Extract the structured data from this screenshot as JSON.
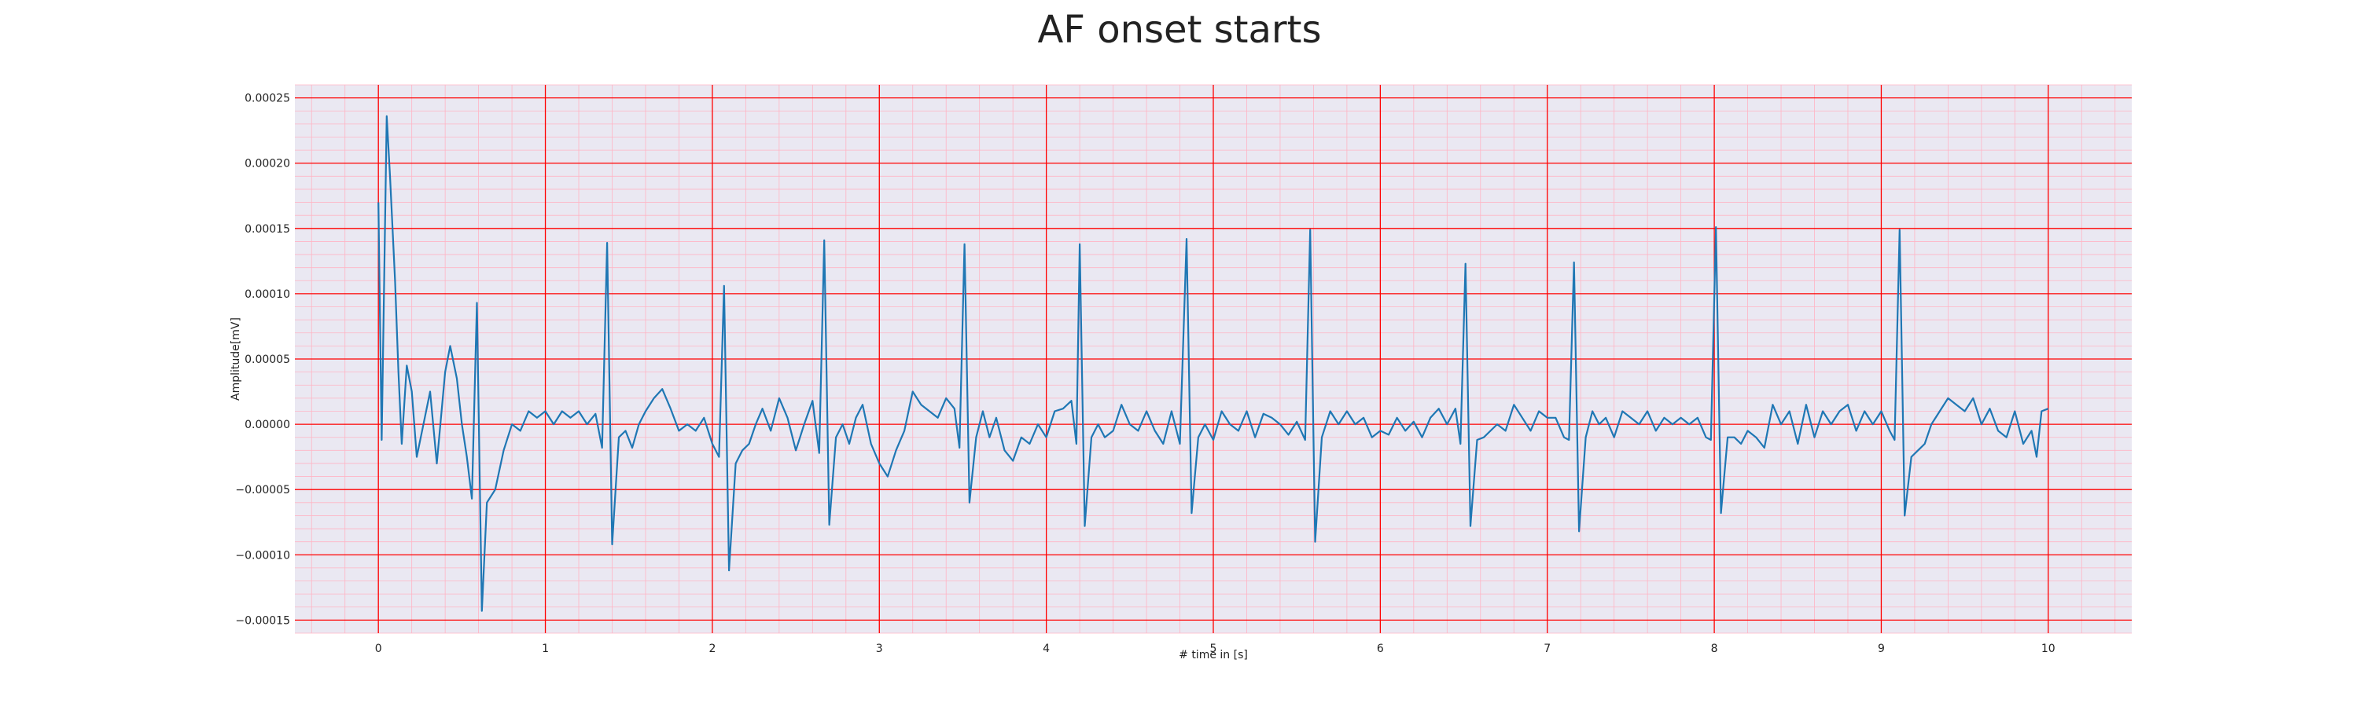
{
  "chart_data": {
    "type": "line",
    "title": "AF onset starts",
    "xlabel": "# time in [s]",
    "ylabel": "Amplitude[mV]",
    "xlim": [
      -0.5,
      10.5
    ],
    "ylim": [
      -0.00016,
      0.00026
    ],
    "x_ticks": [
      0,
      1,
      2,
      3,
      4,
      5,
      6,
      7,
      8,
      9,
      10
    ],
    "x_tick_labels": [
      "0",
      "1",
      "2",
      "3",
      "4",
      "5",
      "6",
      "7",
      "8",
      "9",
      "10"
    ],
    "y_ticks": [
      -0.00015,
      -0.0001,
      -5e-05,
      0,
      5e-05,
      0.0001,
      0.00015,
      0.0002,
      0.00025
    ],
    "y_tick_labels": [
      "−0.00015",
      "−0.00010",
      "−0.00005",
      "0.00000",
      "0.00005",
      "0.00010",
      "0.00015",
      "0.00020",
      "0.00025"
    ],
    "grid": {
      "major": true,
      "minor": true
    },
    "colors": {
      "line": "#1f77b4",
      "plot_background": "#eae8f2",
      "major_grid": "#ff0000",
      "minor_grid": "#ffb4c4"
    },
    "series": [
      {
        "values": [
          [
            0.0,
            0.00017
          ],
          [
            0.02,
            -1.2e-05
          ],
          [
            0.05,
            0.000236
          ],
          [
            0.07,
            0.00019
          ],
          [
            0.1,
            0.00011
          ],
          [
            0.12,
            4e-05
          ],
          [
            0.14,
            -1.5e-05
          ],
          [
            0.17,
            4.5e-05
          ],
          [
            0.2,
            2.5e-05
          ],
          [
            0.23,
            -2.5e-05
          ],
          [
            0.27,
            0.0
          ],
          [
            0.31,
            2.5e-05
          ],
          [
            0.35,
            -3e-05
          ],
          [
            0.4,
            4e-05
          ],
          [
            0.43,
            6e-05
          ],
          [
            0.47,
            3.5e-05
          ],
          [
            0.5,
            0.0
          ],
          [
            0.53,
            -2.5e-05
          ],
          [
            0.56,
            -5.7e-05
          ],
          [
            0.59,
            9.3e-05
          ],
          [
            0.62,
            -0.000143
          ],
          [
            0.65,
            -6e-05
          ],
          [
            0.7,
            -5e-05
          ],
          [
            0.75,
            -2e-05
          ],
          [
            0.8,
            0.0
          ],
          [
            0.85,
            -5e-06
          ],
          [
            0.9,
            1e-05
          ],
          [
            0.95,
            5e-06
          ],
          [
            1.0,
            1e-05
          ],
          [
            1.05,
            0.0
          ],
          [
            1.1,
            1e-05
          ],
          [
            1.15,
            5e-06
          ],
          [
            1.2,
            1e-05
          ],
          [
            1.25,
            0.0
          ],
          [
            1.3,
            8e-06
          ],
          [
            1.34,
            -1.8e-05
          ],
          [
            1.37,
            0.000139
          ],
          [
            1.4,
            -9.2e-05
          ],
          [
            1.44,
            -1e-05
          ],
          [
            1.48,
            -5e-06
          ],
          [
            1.52,
            -1.8e-05
          ],
          [
            1.56,
            0.0
          ],
          [
            1.6,
            1e-05
          ],
          [
            1.65,
            2e-05
          ],
          [
            1.7,
            2.7e-05
          ],
          [
            1.75,
            1.2e-05
          ],
          [
            1.8,
            -5e-06
          ],
          [
            1.85,
            0.0
          ],
          [
            1.9,
            -5e-06
          ],
          [
            1.95,
            5e-06
          ],
          [
            2.0,
            -1.5e-05
          ],
          [
            2.04,
            -2.5e-05
          ],
          [
            2.07,
            0.000106
          ],
          [
            2.1,
            -0.000112
          ],
          [
            2.14,
            -3e-05
          ],
          [
            2.18,
            -2e-05
          ],
          [
            2.22,
            -1.5e-05
          ],
          [
            2.26,
            0.0
          ],
          [
            2.3,
            1.2e-05
          ],
          [
            2.35,
            -5e-06
          ],
          [
            2.4,
            2e-05
          ],
          [
            2.45,
            5e-06
          ],
          [
            2.5,
            -2e-05
          ],
          [
            2.55,
            0.0
          ],
          [
            2.6,
            1.8e-05
          ],
          [
            2.64,
            -2.2e-05
          ],
          [
            2.67,
            0.000141
          ],
          [
            2.7,
            -7.7e-05
          ],
          [
            2.74,
            -1e-05
          ],
          [
            2.78,
            0.0
          ],
          [
            2.82,
            -1.5e-05
          ],
          [
            2.86,
            5e-06
          ],
          [
            2.9,
            1.5e-05
          ],
          [
            2.95,
            -1.5e-05
          ],
          [
            3.0,
            -3e-05
          ],
          [
            3.05,
            -4e-05
          ],
          [
            3.1,
            -2e-05
          ],
          [
            3.15,
            -5e-06
          ],
          [
            3.2,
            2.5e-05
          ],
          [
            3.25,
            1.5e-05
          ],
          [
            3.3,
            1e-05
          ],
          [
            3.35,
            5e-06
          ],
          [
            3.4,
            2e-05
          ],
          [
            3.45,
            1.2e-05
          ],
          [
            3.48,
            -1.8e-05
          ],
          [
            3.51,
            0.000138
          ],
          [
            3.54,
            -6e-05
          ],
          [
            3.58,
            -1e-05
          ],
          [
            3.62,
            1e-05
          ],
          [
            3.66,
            -1e-05
          ],
          [
            3.7,
            5e-06
          ],
          [
            3.75,
            -2e-05
          ],
          [
            3.8,
            -2.8e-05
          ],
          [
            3.85,
            -1e-05
          ],
          [
            3.9,
            -1.5e-05
          ],
          [
            3.95,
            0.0
          ],
          [
            4.0,
            -1e-05
          ],
          [
            4.05,
            1e-05
          ],
          [
            4.1,
            1.2e-05
          ],
          [
            4.15,
            1.8e-05
          ],
          [
            4.18,
            -1.5e-05
          ],
          [
            4.2,
            0.000138
          ],
          [
            4.23,
            -7.8e-05
          ],
          [
            4.27,
            -1e-05
          ],
          [
            4.31,
            0.0
          ],
          [
            4.35,
            -1e-05
          ],
          [
            4.4,
            -5e-06
          ],
          [
            4.45,
            1.5e-05
          ],
          [
            4.5,
            0.0
          ],
          [
            4.55,
            -5e-06
          ],
          [
            4.6,
            1e-05
          ],
          [
            4.65,
            -5e-06
          ],
          [
            4.7,
            -1.5e-05
          ],
          [
            4.75,
            1e-05
          ],
          [
            4.8,
            -1.5e-05
          ],
          [
            4.84,
            0.000142
          ],
          [
            4.87,
            -6.8e-05
          ],
          [
            4.91,
            -1e-05
          ],
          [
            4.95,
            0.0
          ],
          [
            5.0,
            -1.2e-05
          ],
          [
            5.05,
            1e-05
          ],
          [
            5.1,
            0.0
          ],
          [
            5.15,
            -5e-06
          ],
          [
            5.2,
            1e-05
          ],
          [
            5.25,
            -1e-05
          ],
          [
            5.3,
            8e-06
          ],
          [
            5.35,
            5e-06
          ],
          [
            5.4,
            0.0
          ],
          [
            5.45,
            -8e-06
          ],
          [
            5.5,
            2e-06
          ],
          [
            5.55,
            -1.2e-05
          ],
          [
            5.58,
            0.000149
          ],
          [
            5.61,
            -9e-05
          ],
          [
            5.65,
            -1e-05
          ],
          [
            5.7,
            1e-05
          ],
          [
            5.75,
            0.0
          ],
          [
            5.8,
            1e-05
          ],
          [
            5.85,
            0.0
          ],
          [
            5.9,
            5e-06
          ],
          [
            5.95,
            -1e-05
          ],
          [
            6.0,
            -5e-06
          ],
          [
            6.05,
            -8e-06
          ],
          [
            6.1,
            5e-06
          ],
          [
            6.15,
            -5e-06
          ],
          [
            6.2,
            2e-06
          ],
          [
            6.25,
            -1e-05
          ],
          [
            6.3,
            5e-06
          ],
          [
            6.35,
            1.2e-05
          ],
          [
            6.4,
            0.0
          ],
          [
            6.45,
            1.2e-05
          ],
          [
            6.48,
            -1.5e-05
          ],
          [
            6.51,
            0.000123
          ],
          [
            6.54,
            -7.8e-05
          ],
          [
            6.58,
            -1.2e-05
          ],
          [
            6.62,
            -1e-05
          ],
          [
            6.66,
            -5e-06
          ],
          [
            6.7,
            0.0
          ],
          [
            6.75,
            -5e-06
          ],
          [
            6.8,
            1.5e-05
          ],
          [
            6.85,
            5e-06
          ],
          [
            6.9,
            -5e-06
          ],
          [
            6.95,
            1e-05
          ],
          [
            7.0,
            5e-06
          ],
          [
            7.05,
            5e-06
          ],
          [
            7.1,
            -1e-05
          ],
          [
            7.13,
            -1.2e-05
          ],
          [
            7.16,
            0.000124
          ],
          [
            7.19,
            -8.2e-05
          ],
          [
            7.23,
            -1e-05
          ],
          [
            7.27,
            1e-05
          ],
          [
            7.31,
            0.0
          ],
          [
            7.35,
            5e-06
          ],
          [
            7.4,
            -1e-05
          ],
          [
            7.45,
            1e-05
          ],
          [
            7.5,
            5e-06
          ],
          [
            7.55,
            0.0
          ],
          [
            7.6,
            1e-05
          ],
          [
            7.65,
            -5e-06
          ],
          [
            7.7,
            5e-06
          ],
          [
            7.75,
            0.0
          ],
          [
            7.8,
            5e-06
          ],
          [
            7.85,
            0.0
          ],
          [
            7.9,
            5e-06
          ],
          [
            7.95,
            -1e-05
          ],
          [
            7.98,
            -1.2e-05
          ],
          [
            8.01,
            0.000151
          ],
          [
            8.04,
            -6.8e-05
          ],
          [
            8.08,
            -1e-05
          ],
          [
            8.12,
            -1e-05
          ],
          [
            8.16,
            -1.5e-05
          ],
          [
            8.2,
            -5e-06
          ],
          [
            8.25,
            -1e-05
          ],
          [
            8.3,
            -1.8e-05
          ],
          [
            8.35,
            1.5e-05
          ],
          [
            8.4,
            0.0
          ],
          [
            8.45,
            1e-05
          ],
          [
            8.5,
            -1.5e-05
          ],
          [
            8.55,
            1.5e-05
          ],
          [
            8.6,
            -1e-05
          ],
          [
            8.65,
            1e-05
          ],
          [
            8.7,
            0.0
          ],
          [
            8.75,
            1e-05
          ],
          [
            8.8,
            1.5e-05
          ],
          [
            8.85,
            -5e-06
          ],
          [
            8.9,
            1e-05
          ],
          [
            8.95,
            0.0
          ],
          [
            9.0,
            1e-05
          ],
          [
            9.05,
            -5e-06
          ],
          [
            9.08,
            -1.2e-05
          ],
          [
            9.11,
            0.000149
          ],
          [
            9.14,
            -7e-05
          ],
          [
            9.18,
            -2.5e-05
          ],
          [
            9.22,
            -2e-05
          ],
          [
            9.26,
            -1.5e-05
          ],
          [
            9.3,
            0.0
          ],
          [
            9.35,
            1e-05
          ],
          [
            9.4,
            2e-05
          ],
          [
            9.45,
            1.5e-05
          ],
          [
            9.5,
            1e-05
          ],
          [
            9.55,
            2e-05
          ],
          [
            9.6,
            0.0
          ],
          [
            9.65,
            1.2e-05
          ],
          [
            9.7,
            -5e-06
          ],
          [
            9.75,
            -1e-05
          ],
          [
            9.8,
            1e-05
          ],
          [
            9.85,
            -1.5e-05
          ],
          [
            9.9,
            -5e-06
          ],
          [
            9.93,
            -2.5e-05
          ],
          [
            9.96,
            1e-05
          ],
          [
            10.0,
            1.2e-05
          ]
        ]
      }
    ]
  }
}
